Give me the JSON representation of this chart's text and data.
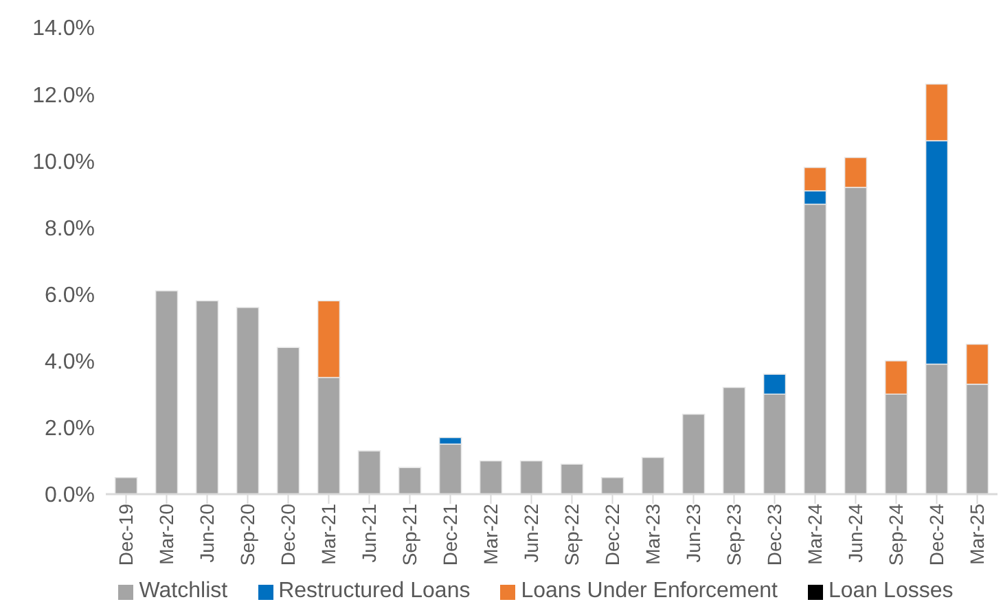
{
  "chart_data": {
    "type": "bar",
    "stacked": true,
    "categories": [
      "Dec-19",
      "Mar-20",
      "Jun-20",
      "Sep-20",
      "Dec-20",
      "Mar-21",
      "Jun-21",
      "Sep-21",
      "Dec-21",
      "Mar-22",
      "Jun-22",
      "Sep-22",
      "Dec-22",
      "Mar-23",
      "Jun-23",
      "Sep-23",
      "Dec-23",
      "Mar-24",
      "Jun-24",
      "Sep-24",
      "Dec-24",
      "Mar-25"
    ],
    "series": [
      {
        "name": "Watchlist",
        "color": "#a5a5a5",
        "values": [
          0.5,
          6.1,
          5.8,
          5.6,
          4.4,
          3.5,
          1.3,
          0.8,
          1.5,
          1.0,
          1.0,
          0.9,
          0.5,
          1.1,
          2.4,
          3.2,
          3.0,
          8.7,
          9.2,
          3.0,
          3.9,
          3.3
        ]
      },
      {
        "name": "Restructured Loans",
        "color": "#0070c0",
        "values": [
          0,
          0,
          0,
          0,
          0,
          0,
          0,
          0,
          0.2,
          0,
          0,
          0,
          0,
          0,
          0,
          0,
          0.6,
          0.4,
          0,
          0,
          6.7,
          0
        ]
      },
      {
        "name": "Loans Under Enforcement",
        "color": "#ed7d31",
        "values": [
          0,
          0,
          0,
          0,
          0,
          2.3,
          0,
          0,
          0,
          0,
          0,
          0,
          0,
          0,
          0,
          0,
          0,
          0.7,
          0.9,
          1.0,
          1.7,
          1.2
        ]
      },
      {
        "name": "Loan Losses",
        "color": "#000000",
        "values": [
          0,
          0,
          0,
          0,
          0,
          0,
          0,
          0,
          0,
          0,
          0,
          0,
          0,
          0,
          0,
          0,
          0,
          0,
          0,
          0,
          0,
          0
        ]
      }
    ],
    "ylim": [
      0,
      14
    ],
    "yticks": [
      {
        "value": 0,
        "label": "0.0%"
      },
      {
        "value": 2,
        "label": "2.0%"
      },
      {
        "value": 4,
        "label": "4.0%"
      },
      {
        "value": 6,
        "label": "6.0%"
      },
      {
        "value": 8,
        "label": "8.0%"
      },
      {
        "value": 10,
        "label": "10.0%"
      },
      {
        "value": 12,
        "label": "12.0%"
      },
      {
        "value": 14,
        "label": "14.0%"
      }
    ],
    "grid": false,
    "legend": "bottom"
  }
}
